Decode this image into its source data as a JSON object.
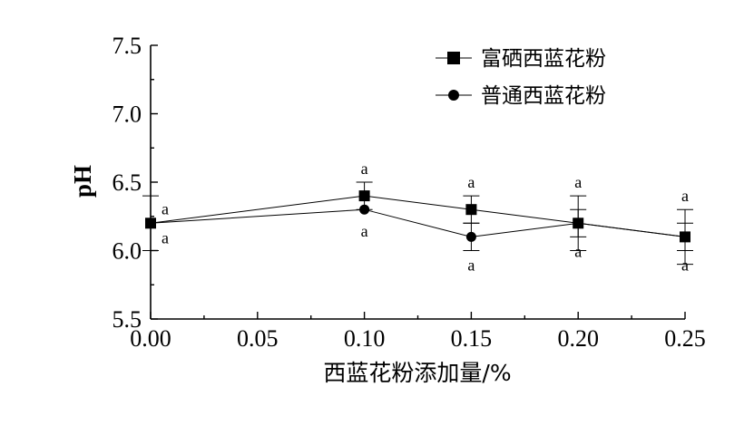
{
  "chart_data": {
    "type": "line",
    "title": "",
    "xlabel": "西蓝花粉添加量/%",
    "ylabel": "pH",
    "x": [
      0.0,
      0.1,
      0.15,
      0.2,
      0.25
    ],
    "xlim": [
      0.0,
      0.25
    ],
    "ylim": [
      5.5,
      7.5
    ],
    "xticks": [
      "0.00",
      "0.05",
      "0.10",
      "0.15",
      "0.20",
      "0.25"
    ],
    "yticks": [
      "5.5",
      "6.0",
      "6.5",
      "7.0",
      "7.5"
    ],
    "grid": false,
    "legend_position": "top-right",
    "series": [
      {
        "name": "富硒西蓝花粉",
        "marker": "square",
        "values": [
          6.2,
          6.4,
          6.3,
          6.2,
          6.1
        ],
        "errors": [
          0.2,
          0.1,
          0.1,
          0.2,
          0.2
        ],
        "letters": [
          "a",
          "a",
          "a",
          "a",
          "a"
        ]
      },
      {
        "name": "普通西蓝花粉",
        "marker": "circle",
        "values": [
          6.2,
          6.3,
          6.1,
          6.2,
          6.1
        ],
        "errors": [
          0.0,
          0.0,
          0.1,
          0.1,
          0.1
        ],
        "letters": [
          "a",
          "a",
          "a",
          "a",
          "a"
        ]
      }
    ]
  }
}
